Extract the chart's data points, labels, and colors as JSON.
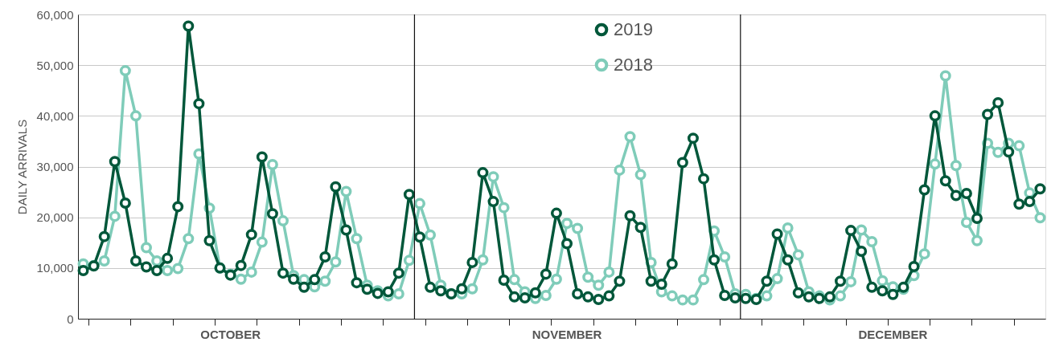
{
  "chart_data": {
    "type": "line",
    "ylabel": "DAILY ARRIVALS",
    "categories": [
      null,
      null,
      null,
      null,
      null,
      null,
      null,
      null,
      null,
      null,
      null,
      null,
      null,
      null,
      "OCTOBER",
      null,
      null,
      null,
      null,
      null,
      null,
      null,
      null,
      null,
      null,
      null,
      null,
      null,
      null,
      null,
      null,
      null,
      null,
      null,
      null,
      null,
      null,
      null,
      null,
      null,
      null,
      null,
      null,
      null,
      null,
      null,
      "NOVEMBER",
      null,
      null,
      null,
      null,
      null,
      null,
      null,
      null,
      null,
      null,
      null,
      null,
      null,
      null,
      null,
      null,
      null,
      null,
      null,
      null,
      null,
      null,
      null,
      null,
      null,
      null,
      null,
      null,
      null,
      null,
      "DECEMBER",
      null,
      null,
      null,
      null,
      null,
      null,
      null,
      null,
      null,
      null,
      null,
      null,
      null,
      null
    ],
    "series": [
      {
        "name": "2019",
        "color": "#00573a",
        "values": [
          9500,
          10400,
          16200,
          31000,
          22800,
          11400,
          10200,
          9500,
          11900,
          22100,
          57700,
          42400,
          15400,
          10000,
          8600,
          10500,
          16600,
          31900,
          20700,
          9000,
          7800,
          6200,
          7700,
          12200,
          26000,
          17500,
          7100,
          5800,
          5000,
          5300,
          9000,
          24500,
          16100,
          6200,
          5500,
          4900,
          5900,
          11100,
          28800,
          23100,
          7600,
          4300,
          4100,
          5100,
          8800,
          20800,
          14800,
          4900,
          4300,
          3800,
          4500,
          7400,
          20300,
          18000,
          7400,
          6800,
          10800,
          30800,
          35600,
          27600,
          11600,
          4600,
          4100,
          4000,
          3800,
          7400,
          16700,
          11600,
          5100,
          4300,
          4000,
          4300,
          7400,
          17400,
          13300,
          6200,
          5500,
          4800,
          6200,
          10300,
          25400,
          40000,
          27200,
          24300,
          24700,
          19800,
          40300,
          42600,
          32900,
          22600,
          23100,
          25600
        ]
      },
      {
        "name": "2018",
        "color": "#7fccb9",
        "values": [
          10800,
          10500,
          11400,
          20200,
          48900,
          40000,
          14000,
          11400,
          9500,
          9900,
          15800,
          32500,
          21800,
          10000,
          8800,
          7800,
          9200,
          15100,
          30400,
          19300,
          8500,
          7700,
          6300,
          7400,
          11200,
          25100,
          15800,
          6600,
          5500,
          4500,
          4900,
          11500,
          22700,
          16500,
          6600,
          4900,
          4900,
          5900,
          11600,
          28000,
          21900,
          7700,
          5300,
          4000,
          4600,
          7800,
          18800,
          17800,
          8200,
          6600,
          9200,
          29300,
          35900,
          28400,
          11100,
          5300,
          4500,
          3700,
          3700,
          7700,
          17300,
          12200,
          4900,
          4800,
          4000,
          4500,
          7900,
          17900,
          12600,
          5300,
          4500,
          3700,
          4500,
          7300,
          17500,
          15200,
          7500,
          6300,
          5800,
          8500,
          12800,
          30500,
          47900,
          30200,
          19000,
          15400,
          34600,
          32800,
          34600,
          34100,
          24800,
          19900
        ]
      }
    ],
    "ylim": [
      0,
      60000
    ],
    "yticks": [
      0,
      {
        "value": 10000,
        "label": "10,000"
      },
      {
        "value": 20000,
        "label": "20,000"
      },
      {
        "value": 30000,
        "label": "30,000"
      },
      {
        "value": 40000,
        "label": "40,000"
      },
      {
        "value": 50000,
        "label": "50,000"
      },
      {
        "value": 60000,
        "label": "60,000"
      }
    ],
    "grid": "y",
    "legend": "top",
    "marker": "circle",
    "line_style": "solid"
  }
}
